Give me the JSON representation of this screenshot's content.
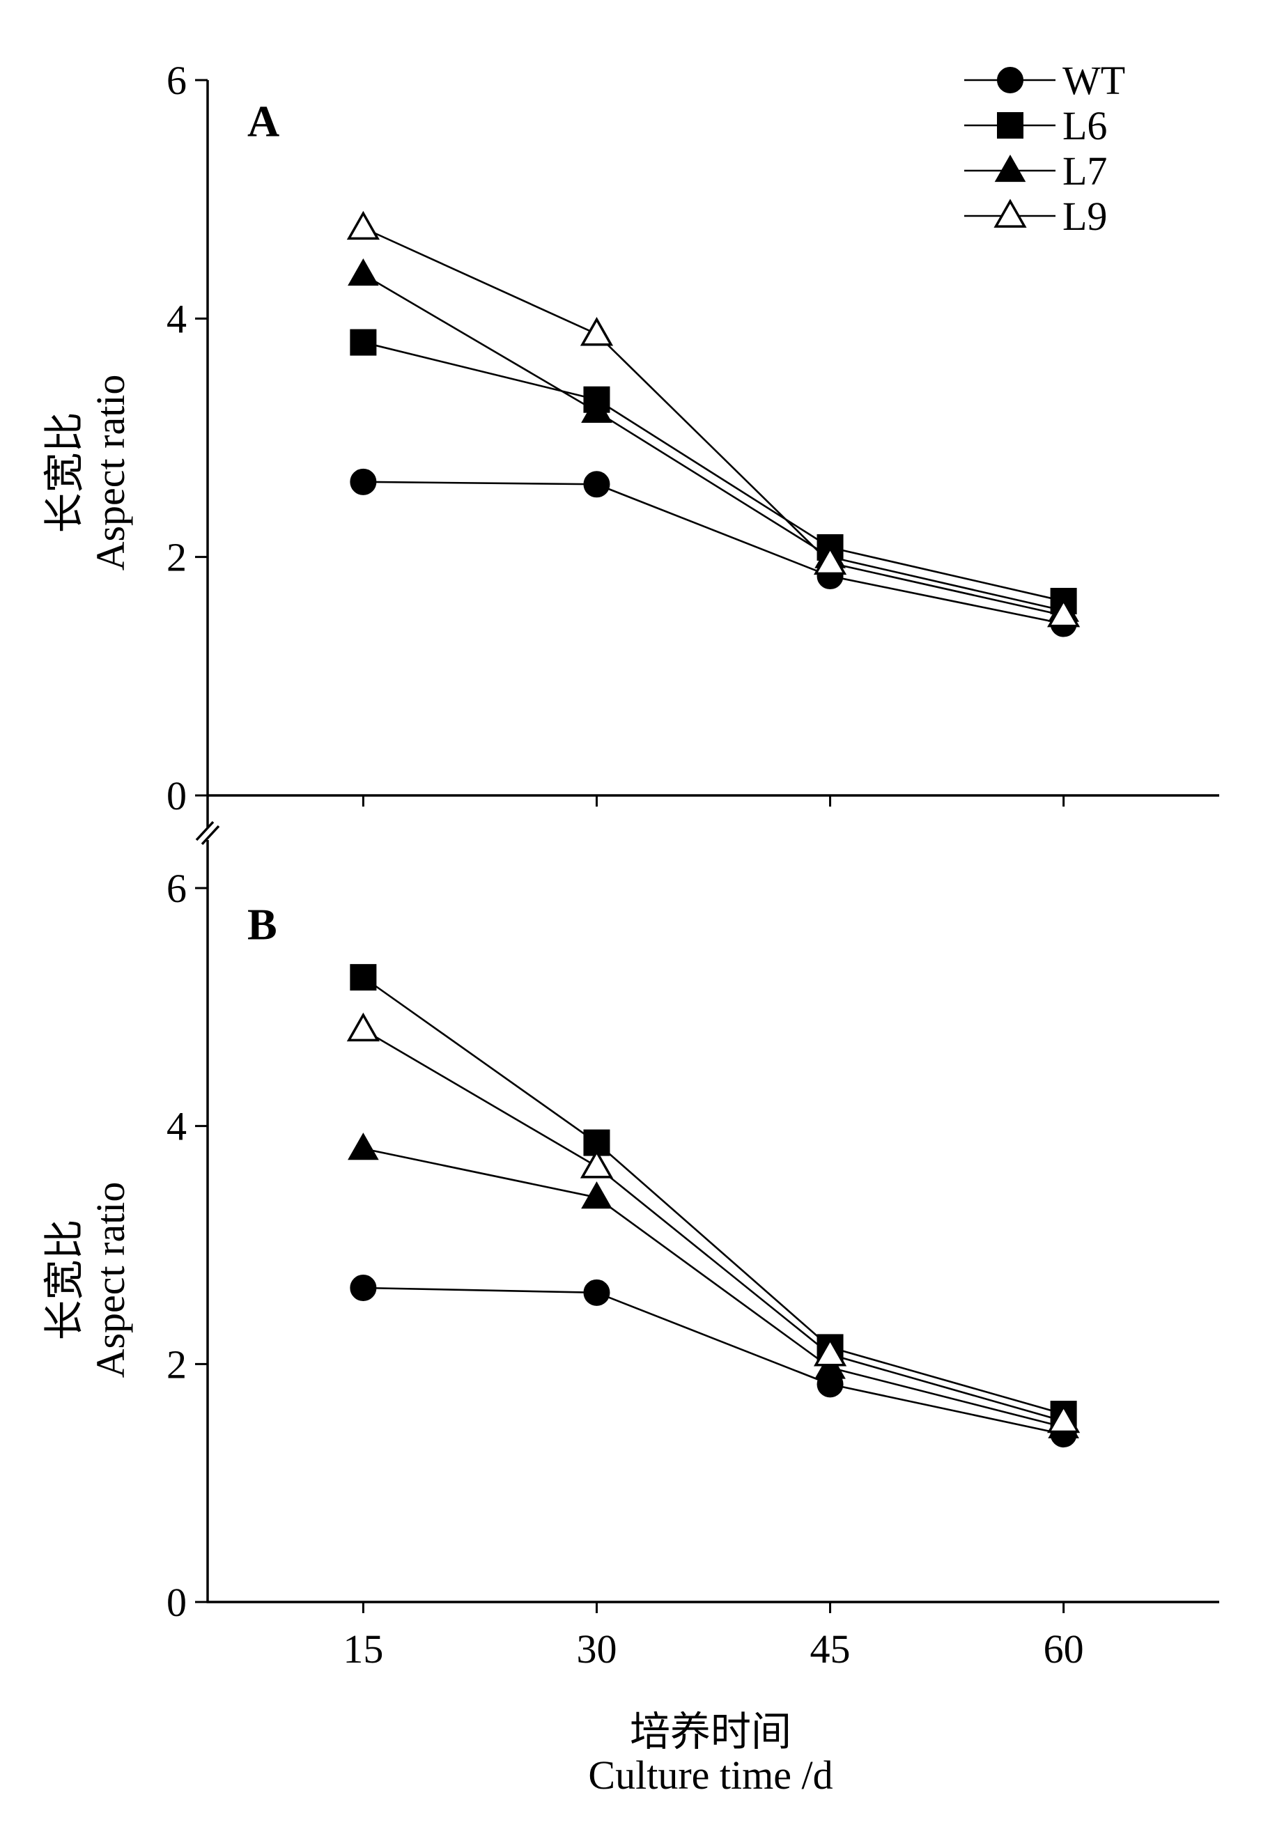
{
  "chart_data": [
    {
      "type": "line",
      "panel_label": "A",
      "ylabel": [
        "长宽比",
        "Aspect ratio"
      ],
      "ylim": [
        0,
        6
      ],
      "yticks": [
        0,
        2,
        4,
        6
      ],
      "x": [
        15,
        30,
        45,
        60
      ],
      "xlim": [
        5,
        70
      ],
      "series": [
        {
          "name": "WT",
          "marker": "circle-filled",
          "values": [
            2.63,
            2.61,
            1.84,
            1.44
          ]
        },
        {
          "name": "L6",
          "marker": "square-filled",
          "values": [
            3.8,
            3.32,
            2.08,
            1.63
          ]
        },
        {
          "name": "L7",
          "marker": "triangle-filled",
          "values": [
            4.37,
            3.22,
            2.0,
            1.55
          ]
        },
        {
          "name": "L9",
          "marker": "triangle-open",
          "values": [
            4.76,
            3.87,
            1.95,
            1.51
          ]
        }
      ],
      "grid": false,
      "legend": "top-right"
    },
    {
      "type": "line",
      "panel_label": "B",
      "ylabel": [
        "长宽比",
        "Aspect ratio"
      ],
      "ylim": [
        0,
        6
      ],
      "yticks": [
        0,
        2,
        4,
        6
      ],
      "x": [
        15,
        30,
        45,
        60
      ],
      "xlim": [
        5,
        70
      ],
      "xticks": [
        15,
        30,
        45,
        60
      ],
      "xlabel": [
        "培养时间",
        "Culture time /d"
      ],
      "series": [
        {
          "name": "WT",
          "marker": "circle-filled",
          "values": [
            2.64,
            2.6,
            1.83,
            1.41
          ]
        },
        {
          "name": "L6",
          "marker": "square-filled",
          "values": [
            5.25,
            3.86,
            2.14,
            1.58
          ]
        },
        {
          "name": "L7",
          "marker": "triangle-filled",
          "values": [
            3.81,
            3.4,
            1.97,
            1.47
          ]
        },
        {
          "name": "L9",
          "marker": "triangle-open",
          "values": [
            4.81,
            3.66,
            2.08,
            1.52
          ]
        }
      ],
      "grid": false
    }
  ],
  "legend": [
    {
      "name": "WT",
      "marker": "circle-filled"
    },
    {
      "name": "L6",
      "marker": "square-filled"
    },
    {
      "name": "L7",
      "marker": "triangle-filled"
    },
    {
      "name": "L9",
      "marker": "triangle-open"
    }
  ]
}
